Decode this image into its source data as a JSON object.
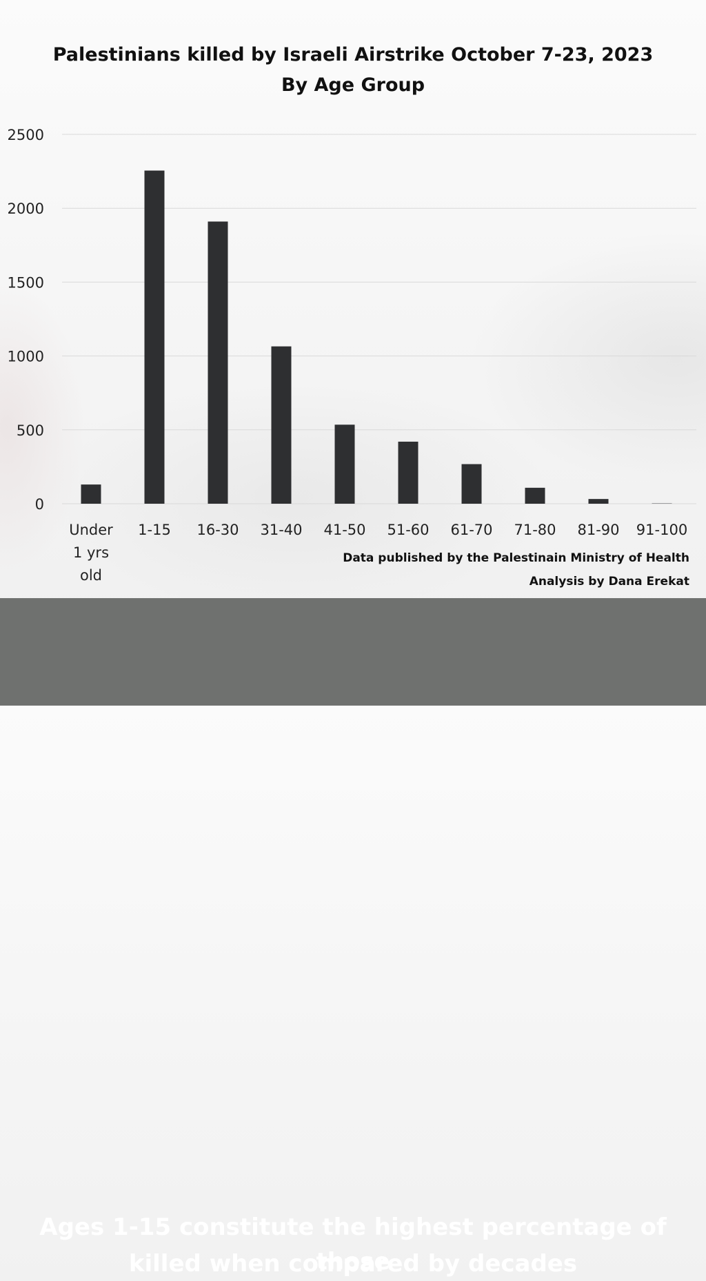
{
  "title_line1": "Palestinians killed by Israeli Airstrike October 7-23, 2023",
  "title_line2": "By Age Group",
  "credit_line1": "Data published by the Palestinain Ministry of Health",
  "credit_line2": "Analysis by Dana Erekat",
  "banner_line1": "Ages 1-15 constitute the highest percentage of those",
  "banner_line2": "killed when compared by decades",
  "colors": {
    "bar": "#2e2f31",
    "grid": "#d9d9d9",
    "banner": "#6f716f"
  },
  "chart_data": {
    "type": "bar",
    "title": "Palestinians killed by Israeli Airstrike October 7-23, 2023 By Age Group",
    "categories": [
      [
        "Under",
        "1 yrs",
        "old"
      ],
      [
        "1-15"
      ],
      [
        "16-30"
      ],
      [
        "31-40"
      ],
      [
        "41-50"
      ],
      [
        "51-60"
      ],
      [
        "61-70"
      ],
      [
        "71-80"
      ],
      [
        "81-90"
      ],
      [
        "91-100"
      ]
    ],
    "values": [
      130,
      2255,
      1910,
      1065,
      535,
      420,
      268,
      108,
      32,
      2
    ],
    "ylim": [
      0,
      2500
    ],
    "yticks": [
      0,
      500,
      1000,
      1500,
      2000,
      2500
    ],
    "grid": true,
    "legend": "none"
  }
}
